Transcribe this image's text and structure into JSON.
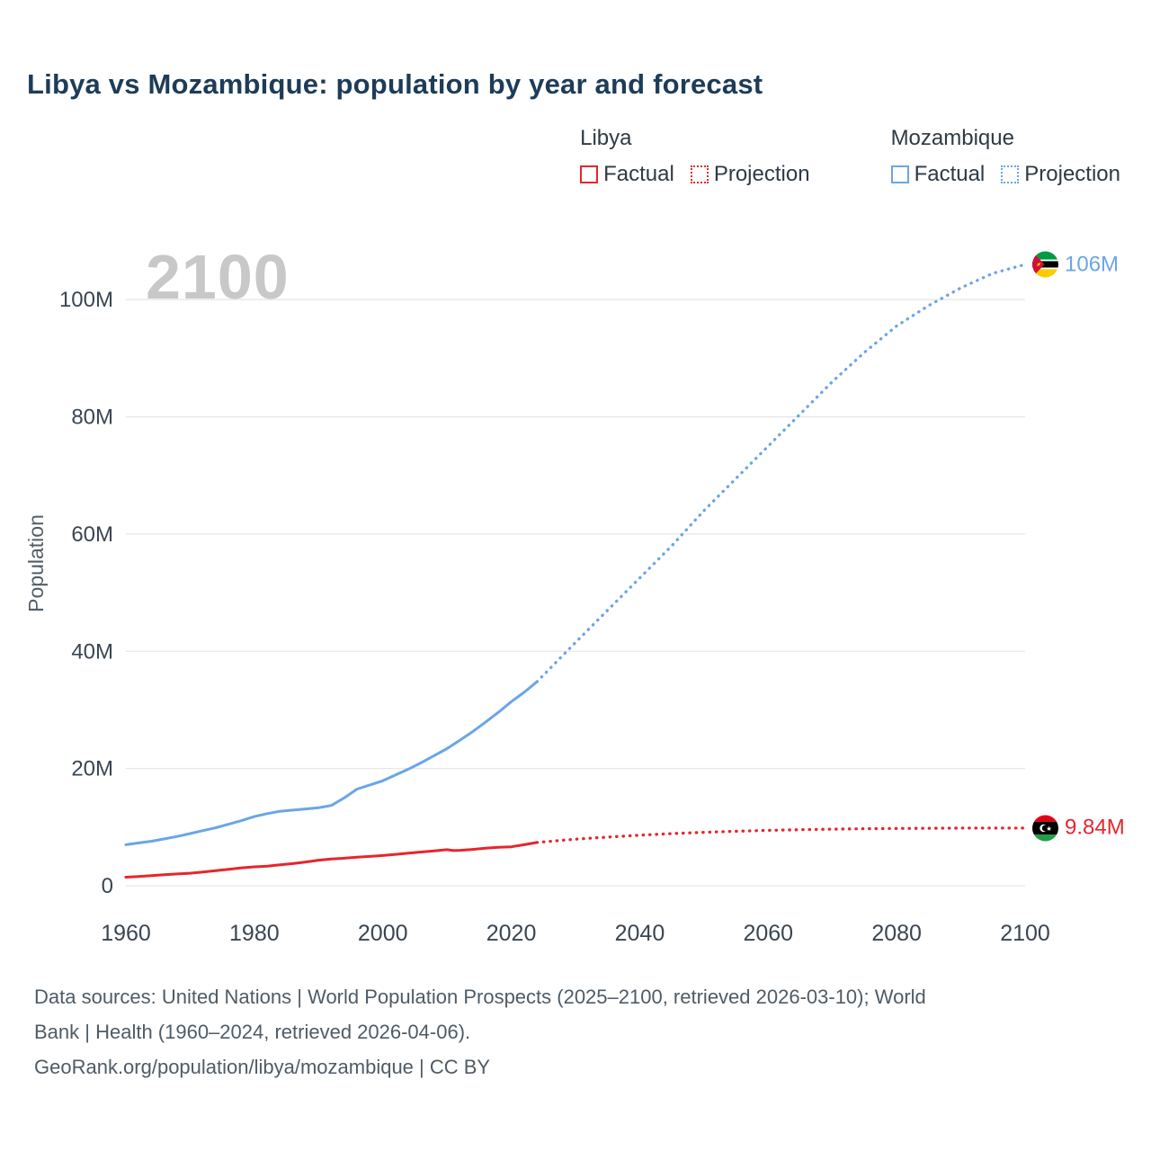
{
  "title": "Libya vs Mozambique: population by year and forecast",
  "watermark": "2100",
  "legend": {
    "groups": [
      {
        "name": "Libya",
        "color": "#e5262d",
        "items": [
          {
            "label": "Factual",
            "style": "solid"
          },
          {
            "label": "Projection",
            "style": "dotted"
          }
        ]
      },
      {
        "name": "Mozambique",
        "color": "#6aa5e8",
        "items": [
          {
            "label": "Factual",
            "style": "solid"
          },
          {
            "label": "Projection",
            "style": "dotted"
          }
        ]
      }
    ]
  },
  "chart_data": {
    "type": "line",
    "title": "Libya vs Mozambique: population by year and forecast",
    "xlabel": "",
    "ylabel": "Population",
    "unit": "millions of people",
    "xlim": [
      1960,
      2100
    ],
    "ylim": [
      0,
      110
    ],
    "grid": true,
    "legend_position": "top-right",
    "x_ticks": [
      1960,
      1980,
      2000,
      2020,
      2040,
      2060,
      2080,
      2100
    ],
    "y_ticks": [
      {
        "value": 0,
        "label": "0"
      },
      {
        "value": 20,
        "label": "20M"
      },
      {
        "value": 40,
        "label": "40M"
      },
      {
        "value": 60,
        "label": "60M"
      },
      {
        "value": 80,
        "label": "80M"
      },
      {
        "value": 100,
        "label": "100M"
      }
    ],
    "series": [
      {
        "name": "Libya Factual",
        "color": "#e5262d",
        "style": "solid",
        "points": [
          [
            1960,
            1.45
          ],
          [
            1962,
            1.57
          ],
          [
            1964,
            1.72
          ],
          [
            1966,
            1.89
          ],
          [
            1968,
            2.01
          ],
          [
            1970,
            2.14
          ],
          [
            1972,
            2.33
          ],
          [
            1974,
            2.56
          ],
          [
            1976,
            2.8
          ],
          [
            1978,
            3.05
          ],
          [
            1980,
            3.22
          ],
          [
            1982,
            3.34
          ],
          [
            1984,
            3.56
          ],
          [
            1986,
            3.77
          ],
          [
            1988,
            4.05
          ],
          [
            1990,
            4.35
          ],
          [
            1992,
            4.55
          ],
          [
            1994,
            4.7
          ],
          [
            1996,
            4.86
          ],
          [
            1998,
            5.0
          ],
          [
            2000,
            5.15
          ],
          [
            2002,
            5.35
          ],
          [
            2004,
            5.55
          ],
          [
            2006,
            5.75
          ],
          [
            2008,
            5.95
          ],
          [
            2010,
            6.15
          ],
          [
            2011,
            6.0
          ],
          [
            2012,
            6.05
          ],
          [
            2014,
            6.2
          ],
          [
            2016,
            6.4
          ],
          [
            2018,
            6.55
          ],
          [
            2020,
            6.65
          ],
          [
            2022,
            7.0
          ],
          [
            2024,
            7.38
          ]
        ]
      },
      {
        "name": "Libya Projection",
        "color": "#e5262d",
        "style": "dotted",
        "points": [
          [
            2024,
            7.38
          ],
          [
            2030,
            7.95
          ],
          [
            2035,
            8.3
          ],
          [
            2040,
            8.62
          ],
          [
            2045,
            8.9
          ],
          [
            2050,
            9.12
          ],
          [
            2055,
            9.3
          ],
          [
            2060,
            9.45
          ],
          [
            2065,
            9.56
          ],
          [
            2070,
            9.65
          ],
          [
            2075,
            9.72
          ],
          [
            2080,
            9.77
          ],
          [
            2085,
            9.81
          ],
          [
            2090,
            9.83
          ],
          [
            2095,
            9.84
          ],
          [
            2100,
            9.84
          ]
        ]
      },
      {
        "name": "Mozambique Factual",
        "color": "#6aa5e8",
        "style": "solid",
        "points": [
          [
            1960,
            7.0
          ],
          [
            1962,
            7.3
          ],
          [
            1964,
            7.6
          ],
          [
            1966,
            8.0
          ],
          [
            1968,
            8.4
          ],
          [
            1970,
            8.9
          ],
          [
            1972,
            9.4
          ],
          [
            1974,
            9.9
          ],
          [
            1976,
            10.5
          ],
          [
            1978,
            11.1
          ],
          [
            1980,
            11.8
          ],
          [
            1982,
            12.3
          ],
          [
            1984,
            12.7
          ],
          [
            1986,
            12.9
          ],
          [
            1988,
            13.1
          ],
          [
            1990,
            13.3
          ],
          [
            1992,
            13.7
          ],
          [
            1994,
            15.0
          ],
          [
            1996,
            16.5
          ],
          [
            1998,
            17.2
          ],
          [
            2000,
            17.9
          ],
          [
            2002,
            18.9
          ],
          [
            2004,
            19.9
          ],
          [
            2006,
            21.0
          ],
          [
            2008,
            22.2
          ],
          [
            2010,
            23.4
          ],
          [
            2012,
            24.8
          ],
          [
            2014,
            26.3
          ],
          [
            2016,
            27.9
          ],
          [
            2018,
            29.6
          ],
          [
            2020,
            31.4
          ],
          [
            2022,
            33.0
          ],
          [
            2024,
            34.8
          ]
        ]
      },
      {
        "name": "Mozambique Projection",
        "color": "#6aa5e8",
        "style": "dotted",
        "points": [
          [
            2024,
            34.8
          ],
          [
            2030,
            41.5
          ],
          [
            2035,
            47.0
          ],
          [
            2040,
            52.5
          ],
          [
            2045,
            58.0
          ],
          [
            2050,
            64.0
          ],
          [
            2055,
            69.5
          ],
          [
            2060,
            75.0
          ],
          [
            2065,
            80.5
          ],
          [
            2070,
            86.0
          ],
          [
            2075,
            91.0
          ],
          [
            2080,
            95.5
          ],
          [
            2085,
            99.0
          ],
          [
            2090,
            102.0
          ],
          [
            2095,
            104.5
          ],
          [
            2100,
            106.0
          ]
        ]
      }
    ],
    "end_labels": [
      {
        "text": "106M",
        "country": "Mozambique",
        "value": 106,
        "flag": "mozambique",
        "label_color": "#6aa5e8"
      },
      {
        "text": "9.84M",
        "country": "Libya",
        "value": 9.84,
        "flag": "libya",
        "label_color": "#e5262d"
      }
    ]
  },
  "footer": {
    "lines": [
      "Data sources: United Nations | World Population Prospects (2025–2100, retrieved 2026-03-10); World",
      "Bank | Health (1960–2024, retrieved 2026-04-06).",
      "GeoRank.org/population/libya/mozambique | CC BY"
    ]
  }
}
